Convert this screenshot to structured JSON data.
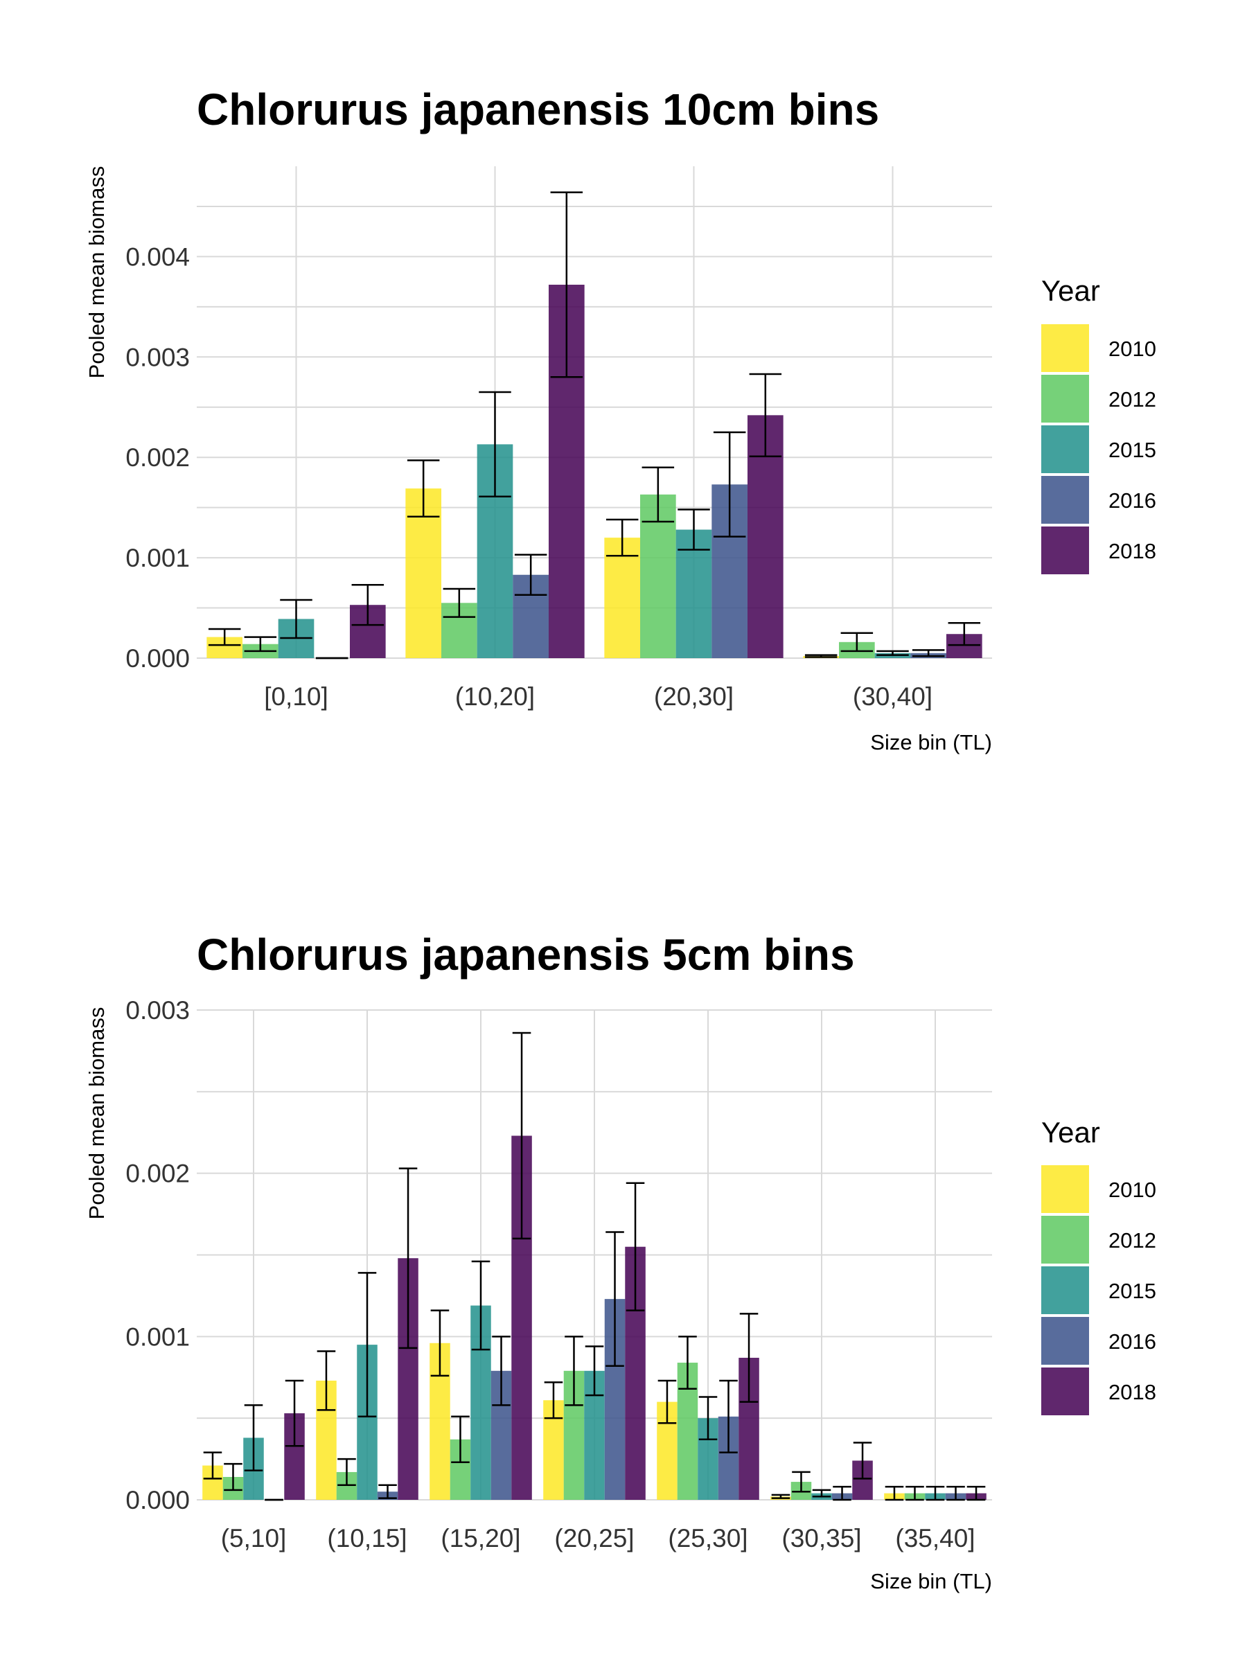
{
  "chart_data": [
    {
      "type": "bar",
      "title": "Chlorurus japanensis 10cm bins",
      "xlabel": "Size bin (TL)",
      "ylabel": "Pooled mean biomass",
      "ylim": [
        0,
        0.0049
      ],
      "yticks": [
        "0.000",
        "0.001",
        "0.002",
        "0.003",
        "0.004"
      ],
      "grid": true,
      "legend": {
        "title": "Year",
        "position": "right"
      },
      "categories": [
        "[0,10]",
        "(10,20]",
        "(20,30]",
        "(30,40]"
      ],
      "series": [
        {
          "name": "2010",
          "color": "#FDE725",
          "values": [
            0.00021,
            0.00169,
            0.0012,
            2e-05
          ],
          "err": [
            8e-05,
            0.00028,
            0.00018,
            1e-05
          ]
        },
        {
          "name": "2012",
          "color": "#5EC962",
          "values": [
            0.00014,
            0.00055,
            0.00163,
            0.00016
          ],
          "err": [
            7e-05,
            0.00014,
            0.00027,
            9e-05
          ]
        },
        {
          "name": "2015",
          "color": "#21918C",
          "values": [
            0.00039,
            0.00213,
            0.00128,
            5e-05
          ],
          "err": [
            0.00019,
            0.00052,
            0.0002,
            2e-05
          ]
        },
        {
          "name": "2016",
          "color": "#3B528B",
          "values": [
            0,
            0.00083,
            0.00173,
            5e-05
          ],
          "err": [
            0,
            0.0002,
            0.00052,
            3e-05
          ]
        },
        {
          "name": "2018",
          "color": "#440154",
          "values": [
            0.00053,
            0.00372,
            0.00242,
            0.00024
          ],
          "err": [
            0.0002,
            0.00092,
            0.00041,
            0.00011
          ]
        }
      ]
    },
    {
      "type": "bar",
      "title": "Chlorurus japanensis 5cm bins",
      "xlabel": "Size bin (TL)",
      "ylabel": "Pooled mean biomass",
      "ylim": [
        0,
        0.003
      ],
      "yticks": [
        "0.000",
        "0.001",
        "0.002",
        "0.003"
      ],
      "grid": true,
      "legend": {
        "title": "Year",
        "position": "right"
      },
      "categories": [
        "(5,10]",
        "(10,15]",
        "(15,20]",
        "(20,25]",
        "(25,30]",
        "(30,35]",
        "(35,40]"
      ],
      "series": [
        {
          "name": "2010",
          "color": "#FDE725",
          "values": [
            0.00021,
            0.00073,
            0.00096,
            0.00061,
            0.0006,
            2e-05,
            4e-05
          ],
          "err": [
            8e-05,
            0.00018,
            0.0002,
            0.00011,
            0.00013,
            1e-05,
            4e-05
          ]
        },
        {
          "name": "2012",
          "color": "#5EC962",
          "values": [
            0.00014,
            0.00017,
            0.00037,
            0.00079,
            0.00084,
            0.00011,
            4e-05
          ],
          "err": [
            8e-05,
            8e-05,
            0.00014,
            0.00021,
            0.00016,
            6e-05,
            4e-05
          ]
        },
        {
          "name": "2015",
          "color": "#21918C",
          "values": [
            0.00038,
            0.00095,
            0.00119,
            0.00079,
            0.0005,
            4e-05,
            4e-05
          ],
          "err": [
            0.0002,
            0.00044,
            0.00027,
            0.00015,
            0.00013,
            2e-05,
            4e-05
          ]
        },
        {
          "name": "2016",
          "color": "#3B528B",
          "values": [
            0,
            5e-05,
            0.00079,
            0.00123,
            0.00051,
            4e-05,
            4e-05
          ],
          "err": [
            0,
            4e-05,
            0.00021,
            0.00041,
            0.00022,
            4e-05,
            4e-05
          ]
        },
        {
          "name": "2018",
          "color": "#440154",
          "values": [
            0.00053,
            0.00148,
            0.00223,
            0.00155,
            0.00087,
            0.00024,
            4e-05
          ],
          "err": [
            0.0002,
            0.00055,
            0.00063,
            0.00039,
            0.00027,
            0.00011,
            4e-05
          ]
        }
      ]
    }
  ]
}
